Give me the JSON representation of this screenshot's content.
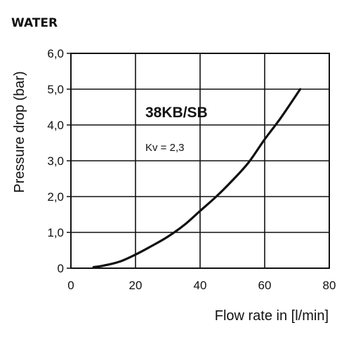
{
  "heading": "WATER",
  "chart_data": {
    "type": "line",
    "title": "",
    "xlabel": "Flow rate in [l/min]",
    "ylabel": "Pressure drop (bar)",
    "xlim": [
      0,
      80
    ],
    "ylim": [
      0,
      6
    ],
    "grid": true,
    "x_ticks": [
      0,
      20,
      40,
      60,
      80
    ],
    "x_tick_labels": [
      "0",
      "20",
      "40",
      "60",
      "80"
    ],
    "y_ticks": [
      0,
      1,
      2,
      3,
      4,
      5,
      6
    ],
    "y_tick_labels": [
      "0",
      "1,0",
      "2,0",
      "3,0",
      "4,0",
      "5,0",
      "6,0"
    ],
    "series": [
      {
        "name": "38KB/SB",
        "x": [
          7,
          10,
          15,
          20,
          25,
          30,
          35,
          40,
          45,
          50,
          55,
          60,
          65,
          71
        ],
        "y": [
          0.03,
          0.07,
          0.18,
          0.38,
          0.62,
          0.88,
          1.2,
          1.6,
          2.0,
          2.45,
          2.95,
          3.6,
          4.2,
          5.0
        ]
      }
    ],
    "annotations": [
      {
        "text": "38KB/SB"
      },
      {
        "text": "Kv = 2,3"
      }
    ]
  }
}
